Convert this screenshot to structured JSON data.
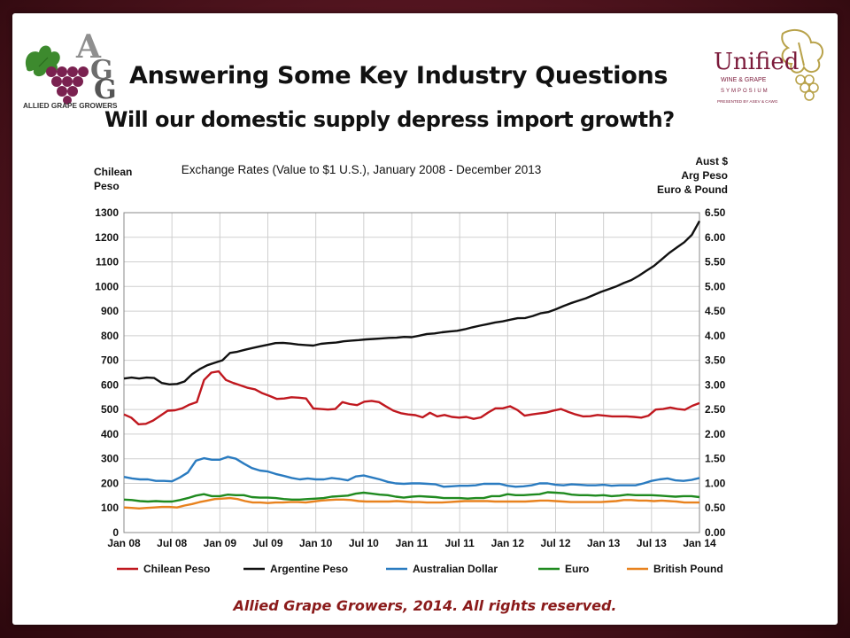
{
  "slide": {
    "title": "Answering Some Key Industry Questions",
    "subtitle": "Will our domestic supply depress import growth?",
    "footer": "Allied Grape Growers, 2014.  All rights reserved.",
    "logo_left": {
      "letters": "AGG",
      "caption": "ALLIED GRAPE GROWERS",
      "icon": "grape-cluster-logo"
    },
    "logo_right": {
      "word": "Unified",
      "line1": "WINE & GRAPE",
      "line2": "SYMPOSIUM",
      "line3": "PRESENTED BY ASEV & CAWG",
      "icon": "grape-vine-logo"
    },
    "colors": {
      "background": "#5a1620",
      "panel": "#ffffff",
      "footer_text": "#8a1a1a"
    }
  },
  "chart_data": {
    "type": "line",
    "title": "Exchange Rates (Value to $1 U.S.), January 2008 - December 2013",
    "y_left_label": [
      "Chilean",
      "Peso"
    ],
    "y_right_label": [
      "Aust $",
      "Arg Peso",
      "Euro & Pound"
    ],
    "y_left_ticks": [
      "0",
      "100",
      "200",
      "300",
      "400",
      "500",
      "600",
      "700",
      "800",
      "900",
      "1000",
      "1100",
      "1200",
      "1300"
    ],
    "y_right_ticks": [
      "0.00",
      "0.50",
      "1.00",
      "1.50",
      "2.00",
      "2.50",
      "3.00",
      "3.50",
      "4.00",
      "4.50",
      "5.00",
      "5.50",
      "6.00",
      "6.50"
    ],
    "ylim_left": [
      0,
      1300
    ],
    "ylim_right": [
      0,
      6.5
    ],
    "x_ticks": [
      "Jan 08",
      "Jul 08",
      "Jan 09",
      "Jul 09",
      "Jan 10",
      "Jul 10",
      "Jan 11",
      "Jul 11",
      "Jan 12",
      "Jul 12",
      "Jan 13",
      "Jul 13",
      "Jan 14"
    ],
    "grid": true,
    "legend_position": "bottom",
    "series": [
      {
        "name": "Chilean Peso",
        "axis": "left",
        "color": "#c0181f",
        "values": [
          480,
          467,
          440,
          442,
          455,
          475,
          495,
          497,
          505,
          520,
          530,
          620,
          650,
          655,
          620,
          608,
          598,
          588,
          582,
          566,
          555,
          543,
          545,
          550,
          548,
          545,
          504,
          502,
          500,
          502,
          530,
          522,
          518,
          532,
          535,
          530,
          512,
          495,
          485,
          480,
          477,
          468,
          487,
          472,
          478,
          470,
          467,
          470,
          462,
          468,
          488,
          505,
          505,
          513,
          498,
          475,
          480,
          484,
          488,
          496,
          502,
          490,
          480,
          472,
          473,
          478,
          475,
          472,
          472,
          472,
          470,
          467,
          475,
          500,
          502,
          508,
          502,
          499,
          515,
          526
        ]
      },
      {
        "name": "Argentine Peso",
        "axis": "left",
        "color": "#111111",
        "values": [
          626,
          630,
          626,
          630,
          628,
          608,
          602,
          604,
          614,
          644,
          664,
          680,
          690,
          700,
          730,
          735,
          743,
          750,
          757,
          763,
          770,
          771,
          768,
          764,
          762,
          760,
          767,
          770,
          772,
          777,
          780,
          782,
          785,
          787,
          789,
          791,
          792,
          795,
          794,
          800,
          807,
          809,
          814,
          817,
          820,
          826,
          834,
          841,
          847,
          854,
          858,
          865,
          871,
          872,
          880,
          891,
          896,
          907,
          920,
          932,
          942,
          952,
          965,
          978,
          989,
          1000,
          1014,
          1026,
          1044,
          1064,
          1084,
          1110,
          1136,
          1158,
          1180,
          1210,
          1266
        ]
      },
      {
        "name": "Australian Dollar",
        "axis": "right",
        "color": "#2a7bc0",
        "values": [
          1.13,
          1.1,
          1.08,
          1.08,
          1.05,
          1.05,
          1.04,
          1.12,
          1.22,
          1.46,
          1.51,
          1.48,
          1.48,
          1.54,
          1.5,
          1.4,
          1.31,
          1.26,
          1.24,
          1.19,
          1.15,
          1.11,
          1.08,
          1.1,
          1.08,
          1.08,
          1.11,
          1.09,
          1.06,
          1.14,
          1.16,
          1.12,
          1.08,
          1.03,
          1.0,
          0.99,
          1.0,
          1.0,
          0.99,
          0.98,
          0.93,
          0.94,
          0.95,
          0.95,
          0.96,
          0.99,
          0.99,
          0.99,
          0.95,
          0.93,
          0.94,
          0.96,
          1.0,
          1.0,
          0.97,
          0.96,
          0.98,
          0.97,
          0.96,
          0.96,
          0.97,
          0.95,
          0.96,
          0.96,
          0.96,
          1.0,
          1.05,
          1.08,
          1.1,
          1.06,
          1.05,
          1.07,
          1.11
        ]
      },
      {
        "name": "Euro",
        "axis": "right",
        "color": "#1f8a1f",
        "values": [
          0.67,
          0.66,
          0.64,
          0.63,
          0.64,
          0.63,
          0.63,
          0.66,
          0.7,
          0.75,
          0.78,
          0.74,
          0.74,
          0.77,
          0.76,
          0.76,
          0.72,
          0.71,
          0.71,
          0.7,
          0.68,
          0.67,
          0.67,
          0.68,
          0.69,
          0.7,
          0.73,
          0.74,
          0.75,
          0.79,
          0.81,
          0.79,
          0.77,
          0.76,
          0.73,
          0.71,
          0.73,
          0.74,
          0.73,
          0.72,
          0.7,
          0.7,
          0.7,
          0.69,
          0.7,
          0.7,
          0.74,
          0.74,
          0.78,
          0.76,
          0.76,
          0.77,
          0.78,
          0.82,
          0.81,
          0.8,
          0.77,
          0.76,
          0.76,
          0.75,
          0.76,
          0.74,
          0.75,
          0.77,
          0.76,
          0.76,
          0.76,
          0.75,
          0.74,
          0.73,
          0.74,
          0.74,
          0.72
        ]
      },
      {
        "name": "British Pound",
        "axis": "right",
        "color": "#e8821e",
        "values": [
          0.51,
          0.5,
          0.49,
          0.5,
          0.51,
          0.52,
          0.52,
          0.51,
          0.55,
          0.58,
          0.62,
          0.65,
          0.68,
          0.69,
          0.7,
          0.68,
          0.64,
          0.61,
          0.61,
          0.6,
          0.61,
          0.61,
          0.62,
          0.62,
          0.61,
          0.63,
          0.65,
          0.66,
          0.67,
          0.67,
          0.66,
          0.64,
          0.63,
          0.63,
          0.63,
          0.63,
          0.64,
          0.63,
          0.62,
          0.62,
          0.61,
          0.61,
          0.61,
          0.62,
          0.63,
          0.64,
          0.64,
          0.64,
          0.64,
          0.63,
          0.63,
          0.63,
          0.63,
          0.63,
          0.64,
          0.65,
          0.65,
          0.64,
          0.63,
          0.62,
          0.62,
          0.62,
          0.62,
          0.62,
          0.63,
          0.64,
          0.66,
          0.66,
          0.65,
          0.65,
          0.64,
          0.65,
          0.64,
          0.63,
          0.61,
          0.61,
          0.61
        ]
      }
    ]
  }
}
